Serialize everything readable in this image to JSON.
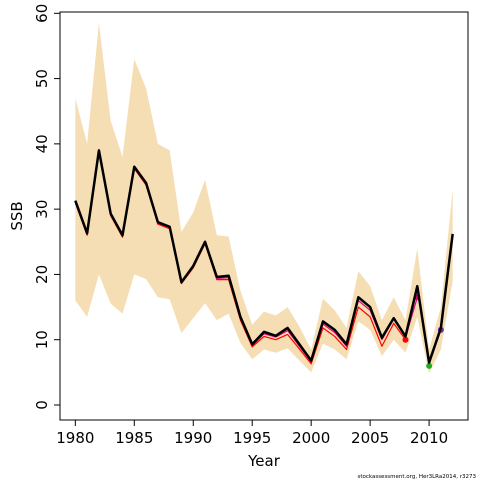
{
  "chart_data": {
    "type": "line",
    "xlabel": "Year",
    "ylabel": "SSB",
    "footnote": "stockassessment.org, Her3LRa2014, r3273",
    "x": [
      1980,
      1981,
      1982,
      1983,
      1984,
      1985,
      1986,
      1987,
      1988,
      1989,
      1990,
      1991,
      1992,
      1993,
      1994,
      1995,
      1996,
      1997,
      1998,
      1999,
      2000,
      2001,
      2002,
      2003,
      2004,
      2005,
      2006,
      2007,
      2008,
      2009,
      2010,
      2011,
      2012
    ],
    "band_color": "#f5deb3",
    "band_upper": [
      47,
      40,
      58.5,
      43.5,
      38,
      53,
      48.5,
      40,
      39,
      26.5,
      29.5,
      34.5,
      26,
      25.8,
      17.5,
      12.3,
      14.3,
      13.7,
      15,
      12,
      8.5,
      16.3,
      14.5,
      11.8,
      20.5,
      18.2,
      13,
      16.5,
      13,
      24,
      8.5,
      15,
      33
    ],
    "band_lower": [
      16,
      13.5,
      20,
      15.5,
      14,
      20,
      19.3,
      16.5,
      16.2,
      11,
      13.3,
      15.6,
      13,
      14,
      9.5,
      7,
      8.5,
      8,
      8.7,
      6.8,
      5,
      9.4,
      8.5,
      7,
      12.8,
      11.5,
      7.5,
      10,
      8,
      13.5,
      4.8,
      8.5,
      19
    ],
    "series": [
      {
        "color": "#ff0000",
        "values": [
          31,
          26,
          38.7,
          29,
          25.7,
          36.2,
          33.7,
          27.7,
          27,
          18.6,
          21,
          24.7,
          19.2,
          19.2,
          13,
          8.9,
          10.5,
          10,
          10.8,
          8.6,
          6.3,
          11.8,
          10.5,
          8.5,
          15,
          13.5,
          9,
          12.5,
          10,
          null,
          null,
          null,
          null
        ]
      },
      {
        "color": "#e0007a",
        "values": [
          31.2,
          26.2,
          38.9,
          29.2,
          25.9,
          36.4,
          33.9,
          27.9,
          27.2,
          18.7,
          21.2,
          24.9,
          19.4,
          19.5,
          13.3,
          9.1,
          10.9,
          10.4,
          11.4,
          9,
          6.6,
          12.4,
          11.1,
          9,
          16,
          14.5,
          10,
          13.2,
          10.3,
          16.5,
          null,
          null,
          null
        ]
      },
      {
        "color": "#22aa22",
        "values": [
          31.3,
          26.3,
          39,
          29.3,
          26,
          36.5,
          34,
          28,
          27.3,
          18.8,
          21.3,
          25,
          19.6,
          19.8,
          13.5,
          9.3,
          11.2,
          10.6,
          11.8,
          9.3,
          6.8,
          12.8,
          11.5,
          9.3,
          16.5,
          15,
          10.3,
          13.3,
          10.5,
          18,
          6,
          null,
          null
        ]
      },
      {
        "color": "#7b2a9a",
        "values": [
          31.3,
          26.3,
          39,
          29.3,
          26,
          36.5,
          34,
          28,
          27.3,
          18.8,
          21.3,
          25,
          19.6,
          19.8,
          13.5,
          9.3,
          11.2,
          10.6,
          11.8,
          9.3,
          6.8,
          12.8,
          11.5,
          9.3,
          16.5,
          15,
          10.3,
          13.3,
          10.5,
          18.2,
          6.4,
          11.5,
          null
        ]
      },
      {
        "color": "#000000",
        "values": [
          31.3,
          26.3,
          39,
          29.3,
          26,
          36.5,
          34,
          28,
          27.3,
          18.8,
          21.3,
          25,
          19.6,
          19.8,
          13.5,
          9.3,
          11.2,
          10.6,
          11.8,
          9.3,
          6.8,
          12.8,
          11.5,
          9.3,
          16.5,
          15,
          10.3,
          13.3,
          10.5,
          18.2,
          6.5,
          11.8,
          26.2
        ]
      }
    ],
    "xlim": [
      1978.7,
      2013.3
    ],
    "ylim": [
      -2.3,
      60.2
    ],
    "xticks": [
      1980,
      1985,
      1990,
      1995,
      2000,
      2005,
      2010
    ],
    "yticks": [
      0,
      10,
      20,
      30,
      40,
      50,
      60
    ]
  }
}
